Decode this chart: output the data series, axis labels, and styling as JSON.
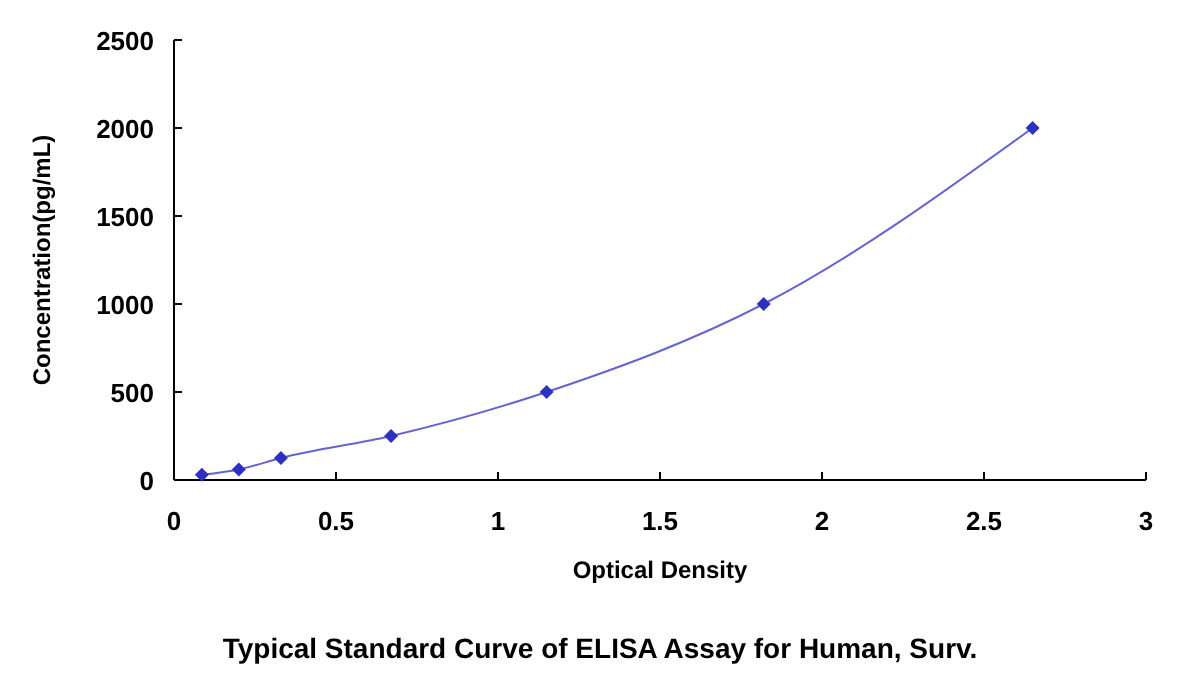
{
  "chart_data": {
    "type": "line",
    "title": "Typical Standard Curve of ELISA Assay for Human, Surv.",
    "xlabel": "Optical Density",
    "ylabel": "Concentration(pg/mL)",
    "x": [
      0.086,
      0.2,
      0.33,
      0.67,
      1.15,
      1.82,
      2.65
    ],
    "series": [
      {
        "color": "#3030c0",
        "values": [
          30,
          60,
          125,
          250,
          500,
          1000,
          2000
        ]
      }
    ],
    "xlim": [
      0,
      3
    ],
    "xticks": [
      0,
      0.5,
      1,
      1.5,
      2,
      2.5,
      3
    ],
    "ylim": [
      0,
      2500
    ],
    "yticks": [
      0,
      500,
      1000,
      1500,
      2000,
      2500
    ],
    "marker": "diamond",
    "line_style": "solid"
  }
}
